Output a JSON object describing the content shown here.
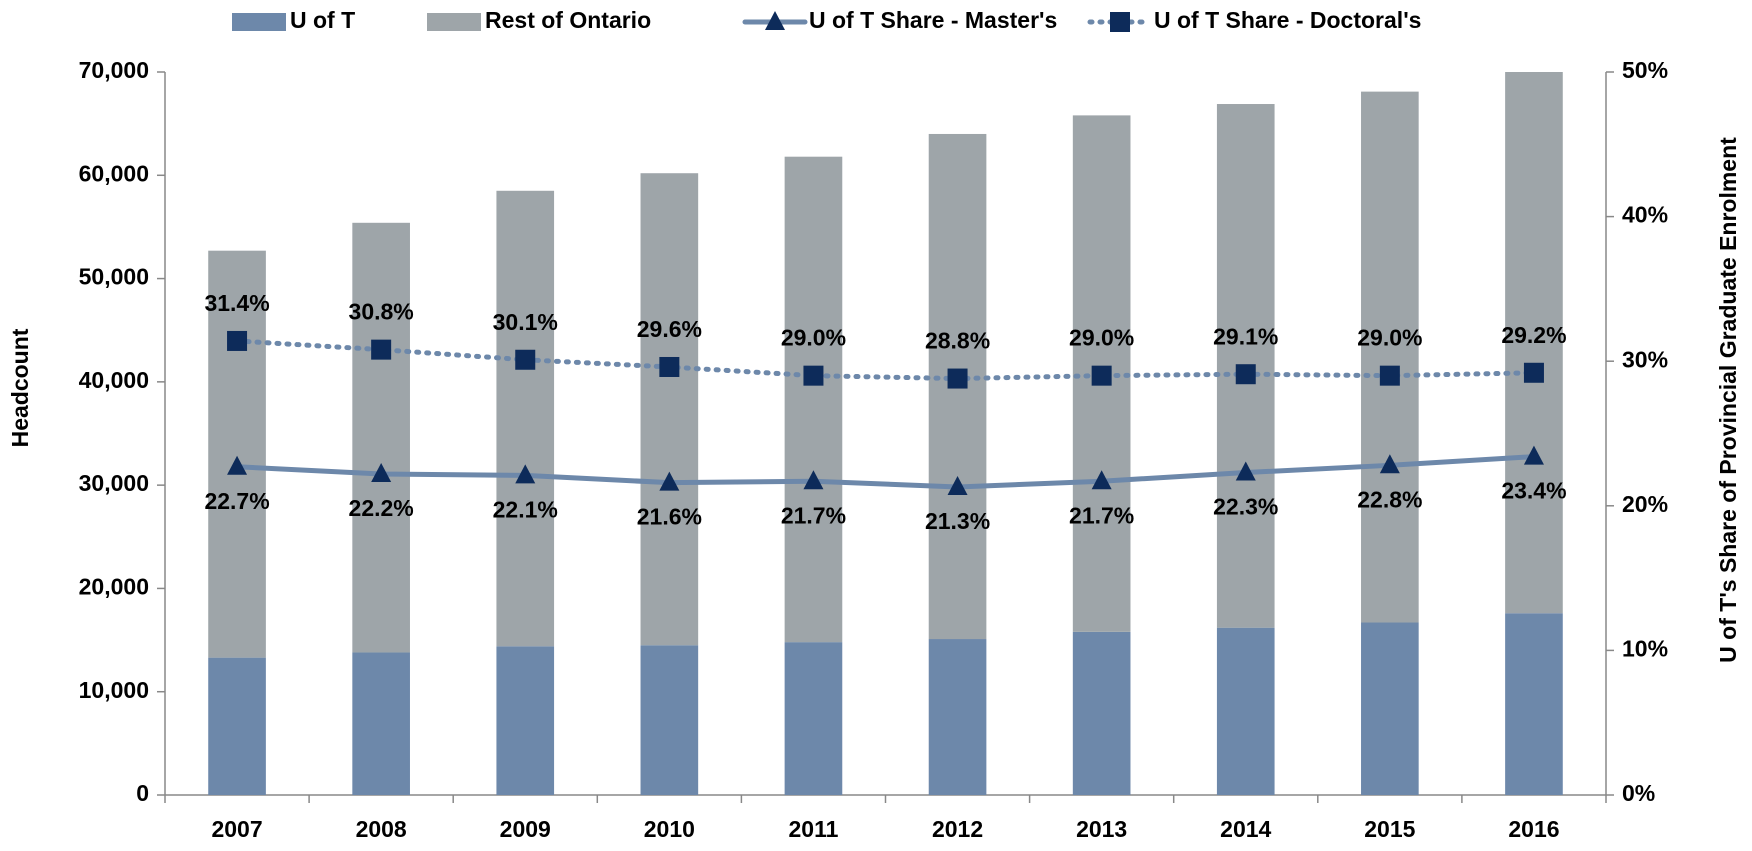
{
  "chart_data": {
    "type": "bar_line",
    "categories": [
      "2007",
      "2008",
      "2009",
      "2010",
      "2011",
      "2012",
      "2013",
      "2014",
      "2015",
      "2016"
    ],
    "series": [
      {
        "name": "U of T",
        "type": "bar",
        "color": "#6d88aa",
        "values": [
          13300,
          13800,
          14400,
          14500,
          14800,
          15100,
          15800,
          16200,
          16700,
          17600
        ]
      },
      {
        "name": "Rest of Ontario",
        "type": "bar",
        "color": "#9ea5a9",
        "values": [
          39400,
          41600,
          44100,
          45700,
          47000,
          48900,
          50000,
          50700,
          51400,
          52400
        ]
      },
      {
        "name": "U of T Share - Master's",
        "type": "line",
        "axis": "y2",
        "color": "#6d88aa",
        "marker": "triangle",
        "marker_color": "#0d2b5a",
        "dash": false,
        "values": [
          22.7,
          22.2,
          22.1,
          21.6,
          21.7,
          21.3,
          21.7,
          22.3,
          22.8,
          23.4
        ],
        "value_labels": [
          "22.7%",
          "22.2%",
          "22.1%",
          "21.6%",
          "21.7%",
          "21.3%",
          "21.7%",
          "22.3%",
          "22.8%",
          "23.4%"
        ]
      },
      {
        "name": "U of T Share - Doctoral's",
        "type": "line",
        "axis": "y2",
        "color": "#6d88aa",
        "marker": "square",
        "marker_color": "#0d2b5a",
        "dash": true,
        "values": [
          31.4,
          30.8,
          30.1,
          29.6,
          29.0,
          28.8,
          29.0,
          29.1,
          29.0,
          29.2
        ],
        "value_labels": [
          "31.4%",
          "30.8%",
          "30.1%",
          "29.6%",
          "29.0%",
          "28.8%",
          "29.0%",
          "29.1%",
          "29.0%",
          "29.2%"
        ]
      }
    ],
    "ylabel": "Headcount",
    "y2label": "U of T's Share of Provincial Graduate Enrolment",
    "ylim": [
      0,
      70000
    ],
    "yticks": [
      0,
      {
        "value": 10000,
        "label": "10,000"
      },
      {
        "value": 20000,
        "label": "20,000"
      },
      {
        "value": 30000,
        "label": "30,000"
      },
      {
        "value": 40000,
        "label": "40,000"
      },
      {
        "value": 50000,
        "label": "50,000"
      },
      {
        "value": 60000,
        "label": "60,000"
      },
      {
        "value": 70000,
        "label": "70,000"
      }
    ],
    "y2lim": [
      0,
      50
    ],
    "y2ticks": [
      {
        "value": 0,
        "label": "0%"
      },
      {
        "value": 10,
        "label": "10%"
      },
      {
        "value": 20,
        "label": "20%"
      },
      {
        "value": 30,
        "label": "30%"
      },
      {
        "value": 40,
        "label": "40%"
      },
      {
        "value": 50,
        "label": "50%"
      }
    ],
    "legend": "top"
  }
}
